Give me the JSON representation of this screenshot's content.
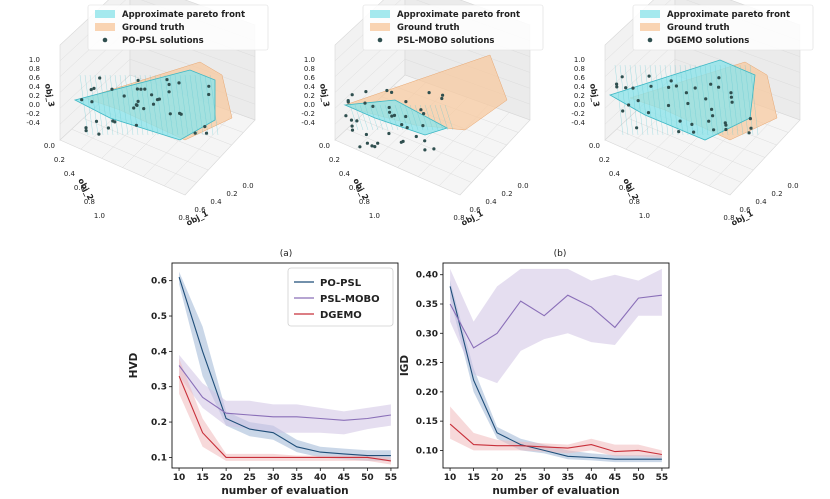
{
  "colors": {
    "po_psl": "#1f4e79",
    "po_psl_band": "#9fb7d6",
    "psl_mobo": "#8a6fb8",
    "psl_mobo_band": "#cfc3e3",
    "dgemo": "#c8303a",
    "dgemo_band": "#f0b9bc",
    "approx_front": "#8fe3ea",
    "ground_truth": "#f7c9a0",
    "solutions_dot": "#2f4f4f"
  },
  "panels_3d": [
    {
      "legend": [
        "Approximate pareto front",
        "Ground truth",
        "PO-PSL solutions"
      ],
      "z_label": "obj_3",
      "y_label": "obj_2",
      "x_label": "obj_1",
      "z_ticks": [
        "1.0",
        "0.8",
        "0.6",
        "0.4",
        "0.2",
        "0.0",
        "-0.2",
        "-0.4"
      ],
      "y_ticks": [
        "0.0",
        "0.2",
        "0.4",
        "0.6",
        "0.8",
        "1.0"
      ],
      "x_ticks": [
        "0.0",
        "0.2",
        "0.4",
        "0.6",
        "0.8"
      ],
      "caption": ""
    },
    {
      "legend": [
        "Approximate pareto front",
        "Ground truth",
        "PSL-MOBO solutions"
      ],
      "z_label": "obj_3",
      "y_label": "obj_2",
      "x_label": "obj_1",
      "z_ticks": [
        "1.0",
        "0.8",
        "0.6",
        "0.4",
        "0.2",
        "0.0",
        "-0.2",
        "-0.4"
      ],
      "y_ticks": [
        "0.0",
        "0.2",
        "0.4",
        "0.6",
        "0.8",
        "1.0"
      ],
      "x_ticks": [
        "0.0",
        "0.2",
        "0.4",
        "0.6",
        "0.8"
      ],
      "caption": "(a)"
    },
    {
      "legend": [
        "Approximate pareto front",
        "Ground truth",
        "DGEMO solutions"
      ],
      "z_label": "obj_3",
      "y_label": "obj_2",
      "x_label": "obj_1",
      "z_ticks": [
        "1.0",
        "0.8",
        "0.6",
        "0.4",
        "0.2",
        "0.0",
        "-0.2",
        "-0.4"
      ],
      "y_ticks": [
        "0.0",
        "0.2",
        "0.4",
        "0.6",
        "0.8",
        "1.0"
      ],
      "x_ticks": [
        "0.0",
        "0.2",
        "0.4",
        "0.6",
        "0.8"
      ],
      "caption": "(b)"
    }
  ],
  "chart_data": [
    {
      "type": "line",
      "title": "",
      "xlabel": "number of evaluation",
      "ylabel": "HVD",
      "x": [
        10,
        15,
        20,
        25,
        30,
        35,
        40,
        45,
        50,
        55
      ],
      "xticks": [
        10,
        15,
        20,
        25,
        30,
        35,
        40,
        45,
        50,
        55
      ],
      "yticks": [
        0.1,
        0.2,
        0.3,
        0.4,
        0.5,
        0.6
      ],
      "xlim": [
        8.5,
        56.5
      ],
      "ylim": [
        0.07,
        0.65
      ],
      "legend": {
        "position": "top-right",
        "entries": [
          "PO-PSL",
          "PSL-MOBO",
          "DGEMO"
        ]
      },
      "series": [
        {
          "name": "PO-PSL",
          "values": [
            0.61,
            0.4,
            0.21,
            0.18,
            0.17,
            0.13,
            0.115,
            0.11,
            0.105,
            0.105
          ],
          "lower": [
            0.59,
            0.33,
            0.19,
            0.16,
            0.15,
            0.115,
            0.1,
            0.095,
            0.09,
            0.09
          ],
          "upper": [
            0.625,
            0.47,
            0.23,
            0.2,
            0.19,
            0.15,
            0.13,
            0.125,
            0.12,
            0.12
          ]
        },
        {
          "name": "PSL-MOBO",
          "values": [
            0.36,
            0.27,
            0.225,
            0.22,
            0.215,
            0.215,
            0.21,
            0.205,
            0.21,
            0.22
          ],
          "lower": [
            0.33,
            0.24,
            0.19,
            0.18,
            0.17,
            0.17,
            0.17,
            0.165,
            0.18,
            0.19
          ],
          "upper": [
            0.39,
            0.31,
            0.26,
            0.26,
            0.25,
            0.25,
            0.24,
            0.23,
            0.24,
            0.25
          ]
        },
        {
          "name": "DGEMO",
          "values": [
            0.33,
            0.17,
            0.1,
            0.1,
            0.1,
            0.1,
            0.1,
            0.1,
            0.1,
            0.09
          ],
          "lower": [
            0.28,
            0.13,
            0.09,
            0.09,
            0.09,
            0.09,
            0.09,
            0.09,
            0.09,
            0.08
          ],
          "upper": [
            0.38,
            0.21,
            0.11,
            0.11,
            0.11,
            0.105,
            0.105,
            0.105,
            0.105,
            0.1
          ]
        }
      ]
    },
    {
      "type": "line",
      "title": "",
      "xlabel": "number of evaluation",
      "ylabel": "IGD",
      "x": [
        10,
        15,
        20,
        25,
        30,
        35,
        40,
        45,
        50,
        55
      ],
      "xticks": [
        10,
        15,
        20,
        25,
        30,
        35,
        40,
        45,
        50,
        55
      ],
      "yticks": [
        0.1,
        0.15,
        0.2,
        0.25,
        0.3,
        0.35,
        0.4
      ],
      "xlim": [
        8.5,
        56.5
      ],
      "ylim": [
        0.07,
        0.42
      ],
      "legend": null,
      "series": [
        {
          "name": "PO-PSL",
          "values": [
            0.38,
            0.22,
            0.13,
            0.11,
            0.1,
            0.09,
            0.088,
            0.085,
            0.085,
            0.085
          ],
          "lower": [
            0.36,
            0.2,
            0.12,
            0.1,
            0.095,
            0.085,
            0.083,
            0.08,
            0.08,
            0.08
          ],
          "upper": [
            0.39,
            0.24,
            0.14,
            0.12,
            0.11,
            0.1,
            0.095,
            0.092,
            0.092,
            0.092
          ]
        },
        {
          "name": "PSL-MOBO",
          "values": [
            0.35,
            0.275,
            0.3,
            0.355,
            0.33,
            0.365,
            0.345,
            0.31,
            0.36,
            0.365
          ],
          "lower": [
            0.32,
            0.23,
            0.215,
            0.27,
            0.29,
            0.3,
            0.285,
            0.28,
            0.33,
            0.33
          ],
          "upper": [
            0.41,
            0.32,
            0.38,
            0.41,
            0.41,
            0.41,
            0.39,
            0.4,
            0.39,
            0.41
          ]
        },
        {
          "name": "DGEMO",
          "values": [
            0.145,
            0.11,
            0.108,
            0.108,
            0.106,
            0.104,
            0.11,
            0.098,
            0.1,
            0.093
          ],
          "lower": [
            0.12,
            0.1,
            0.1,
            0.1,
            0.098,
            0.095,
            0.1,
            0.09,
            0.09,
            0.087
          ],
          "upper": [
            0.175,
            0.13,
            0.118,
            0.115,
            0.112,
            0.11,
            0.12,
            0.11,
            0.11,
            0.1
          ]
        }
      ]
    }
  ]
}
